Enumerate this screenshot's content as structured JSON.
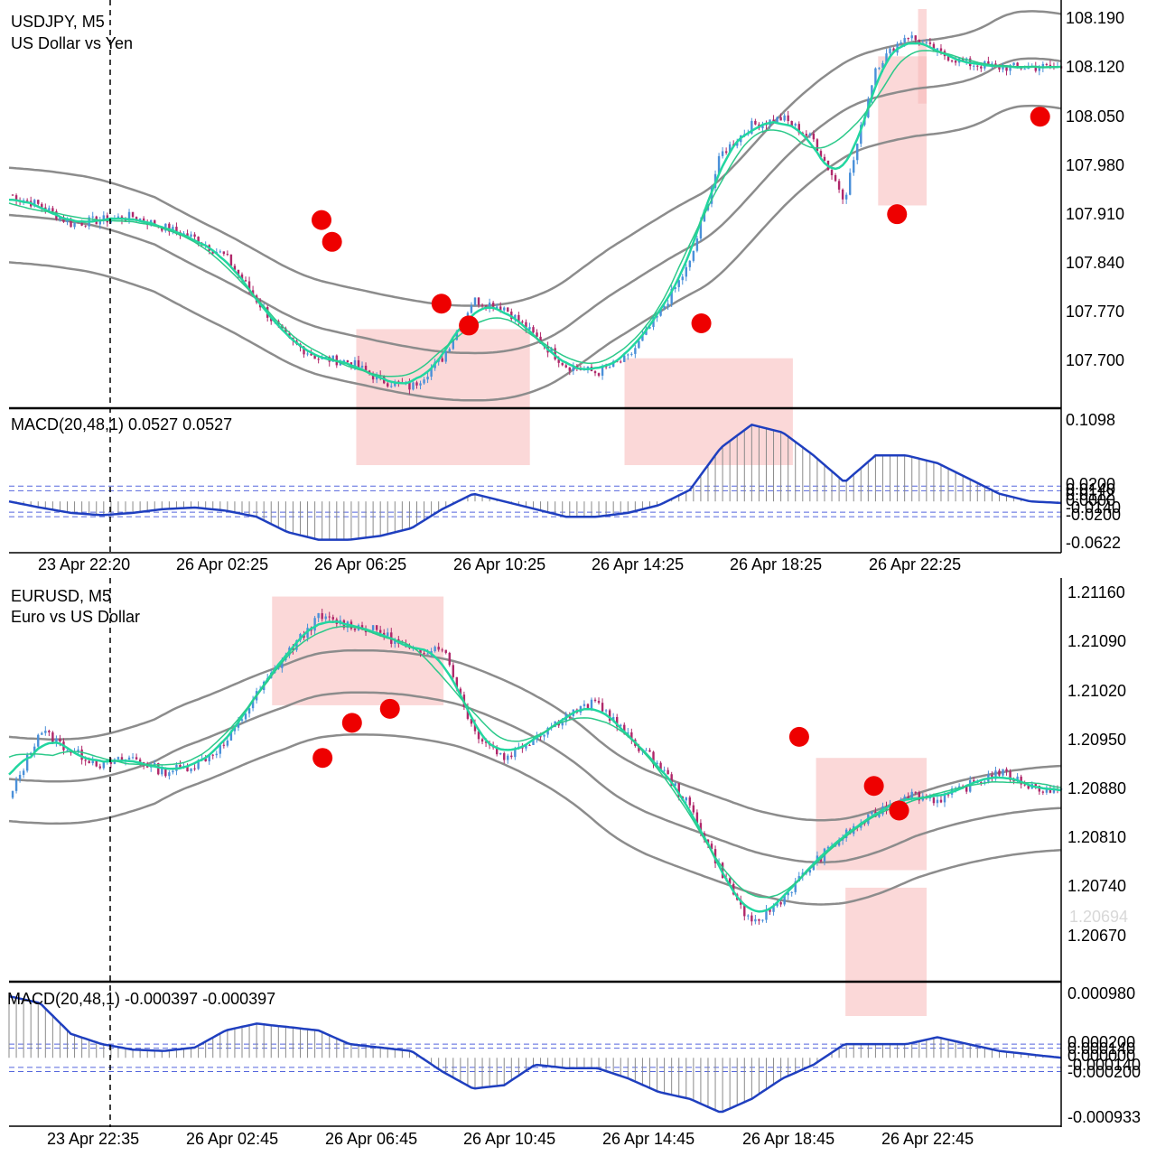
{
  "colors": {
    "bull": "#4a90d9",
    "bear": "#b0286a",
    "ma_fast": "#22d6a0",
    "ma_slow": "#2cc98a",
    "envelope": "#8c8c8c",
    "macd_line": "#1f3fbf",
    "histogram": "#8a8a8a",
    "level_lines": "#5566dd",
    "zone": "#f8b8b8",
    "dot": "#ee0000"
  },
  "panels": [
    {
      "symbol": "USDJPY, M5",
      "description": "US Dollar vs Yen",
      "price_ticks": [
        "108.190",
        "108.120",
        "108.050",
        "107.980",
        "107.910",
        "107.840",
        "107.770",
        "107.700"
      ],
      "macd_label": "MACD(20,48,1) 0.0527 0.0527",
      "macd_ticks_top": "0.1098",
      "macd_ticks_cluster": [
        "0.0200",
        "0.0140",
        "0.0112",
        "0.0000",
        "-0.0140",
        "-0.0200"
      ],
      "macd_ticks_bottom": "-0.0622",
      "time_ticks": [
        "23 Apr 22:20",
        "26 Apr 02:25",
        "26 Apr 06:25",
        "26 Apr 10:25",
        "26 Apr 14:25",
        "26 Apr 18:25",
        "26 Apr 22:25"
      ],
      "ghost_price": ""
    },
    {
      "symbol": "EURUSD, M5",
      "description": "Euro vs US Dollar",
      "price_ticks": [
        "1.21160",
        "1.21090",
        "1.21020",
        "1.20950",
        "1.20880",
        "1.20810",
        "1.20740",
        "1.20670"
      ],
      "ghost_price": "1.20694",
      "macd_label": "MACD(20,48,1) -0.000397 -0.000397",
      "macd_ticks_top": "0.000980",
      "macd_ticks_cluster": [
        "0.000200",
        "0.000140",
        "0.000000",
        "-0.000140",
        "-0.000200"
      ],
      "macd_ticks_bottom": "-0.000933",
      "time_ticks": [
        "23 Apr 22:35",
        "26 Apr 02:45",
        "26 Apr 06:45",
        "26 Apr 10:45",
        "26 Apr 14:45",
        "26 Apr 18:45",
        "26 Apr 22:45"
      ]
    }
  ],
  "chart_data": [
    {
      "type": "candlestick",
      "title": "USDJPY, M5",
      "subtitle": "US Dollar vs Yen",
      "ylim": [
        107.66,
        108.2
      ],
      "x": [
        "23 Apr 22:20",
        "26 Apr 02:25",
        "26 Apr 06:25",
        "26 Apr 10:25",
        "26 Apr 14:25",
        "26 Apr 18:25",
        "26 Apr 22:25"
      ],
      "close_path": [
        107.945,
        107.93,
        107.905,
        107.91,
        107.915,
        107.9,
        107.885,
        107.86,
        107.8,
        107.745,
        107.72,
        107.715,
        107.69,
        107.68,
        107.72,
        107.8,
        107.79,
        107.75,
        107.71,
        107.7,
        107.72,
        107.78,
        107.85,
        108.0,
        108.04,
        108.05,
        108.02,
        107.94,
        108.12,
        108.165,
        108.14,
        108.125,
        108.12,
        108.12,
        108.12
      ],
      "zones": [
        {
          "x0": 0.33,
          "x1": 0.495,
          "y0": 107.76,
          "y1": "macd"
        },
        {
          "x0": 0.585,
          "x1": 0.745,
          "y0": 107.72,
          "y1": "macd"
        },
        {
          "x0": 0.826,
          "x1": 0.99,
          "y0": 108.135,
          "y1": 107.93
        },
        {
          "x0": 0.864,
          "x1": 1.026,
          "y0": 108.2,
          "y1": 108.07
        }
      ],
      "signals": [
        {
          "x": 0.297,
          "y": 107.91
        },
        {
          "x": 0.307,
          "y": 107.88
        },
        {
          "x": 0.411,
          "y": 107.795
        },
        {
          "x": 0.437,
          "y": 107.765
        },
        {
          "x": 0.658,
          "y": 107.768
        },
        {
          "x": 0.844,
          "y": 107.918
        },
        {
          "x": 0.98,
          "y": 108.052
        }
      ],
      "macd": {
        "ylim": [
          -0.0622,
          0.1098
        ],
        "values": [
          0.0,
          -0.008,
          -0.015,
          -0.018,
          -0.015,
          -0.01,
          -0.008,
          -0.012,
          -0.02,
          -0.04,
          -0.05,
          -0.05,
          -0.045,
          -0.035,
          -0.01,
          0.01,
          0.0,
          -0.01,
          -0.02,
          -0.02,
          -0.015,
          -0.005,
          0.015,
          0.07,
          0.1,
          0.09,
          0.06,
          0.025,
          0.06,
          0.06,
          0.05,
          0.03,
          0.01,
          0.0,
          -0.002
        ],
        "levels": [
          0.02,
          0.014,
          -0.014,
          -0.02
        ]
      }
    },
    {
      "type": "candlestick",
      "title": "EURUSD, M5",
      "subtitle": "Euro vs US Dollar",
      "ylim": [
        1.2062,
        1.2118
      ],
      "x": [
        "23 Apr 22:35",
        "26 Apr 02:45",
        "26 Apr 06:45",
        "26 Apr 10:45",
        "26 Apr 14:45",
        "26 Apr 18:45",
        "26 Apr 22:45"
      ],
      "close_path": [
        1.2087,
        1.2097,
        1.2094,
        1.2092,
        1.2093,
        1.2091,
        1.2092,
        1.2095,
        1.2102,
        1.2108,
        1.2113,
        1.2112,
        1.2111,
        1.2108,
        1.2109,
        1.2097,
        1.2093,
        1.2096,
        1.2099,
        1.2101,
        1.2096,
        1.2092,
        1.2086,
        1.2077,
        1.2069,
        1.2073,
        1.2078,
        1.2082,
        1.2085,
        1.2088,
        1.2087,
        1.2089,
        1.2091,
        1.2089,
        1.2088
      ],
      "zones": [
        {
          "x0": 0.25,
          "x1": 0.413,
          "y0": 1.2116,
          "y1": 1.21005
        },
        {
          "x0": 0.767,
          "x1": 0.93,
          "y0": 1.2093,
          "y1": 1.2077
        },
        {
          "x0": 0.795,
          "x1": 0.957,
          "y0": 1.20745,
          "y1": "macd"
        }
      ],
      "signals": [
        {
          "x": 0.298,
          "y": 1.2093
        },
        {
          "x": 0.326,
          "y": 1.2098
        },
        {
          "x": 0.362,
          "y": 1.21
        },
        {
          "x": 0.751,
          "y": 1.2096
        },
        {
          "x": 0.822,
          "y": 1.2089
        },
        {
          "x": 0.846,
          "y": 1.20855
        }
      ],
      "macd": {
        "ylim": [
          -0.000933,
          0.00098
        ],
        "values": [
          0.0009,
          0.0008,
          0.00035,
          0.0002,
          0.00012,
          0.0001,
          0.00015,
          0.0004,
          0.0005,
          0.00045,
          0.0004,
          0.0002,
          0.00015,
          0.0001,
          -0.0002,
          -0.00045,
          -0.0004,
          -0.0001,
          -0.00015,
          -0.00015,
          -0.0003,
          -0.0005,
          -0.0006,
          -0.0008,
          -0.0006,
          -0.0003,
          -0.0001,
          0.0002,
          0.0002,
          0.0002,
          0.0003,
          0.0002,
          0.0001,
          5e-05,
          0.0
        ],
        "levels": [
          0.0002,
          0.00014,
          -0.00014,
          -0.0002
        ]
      }
    }
  ]
}
